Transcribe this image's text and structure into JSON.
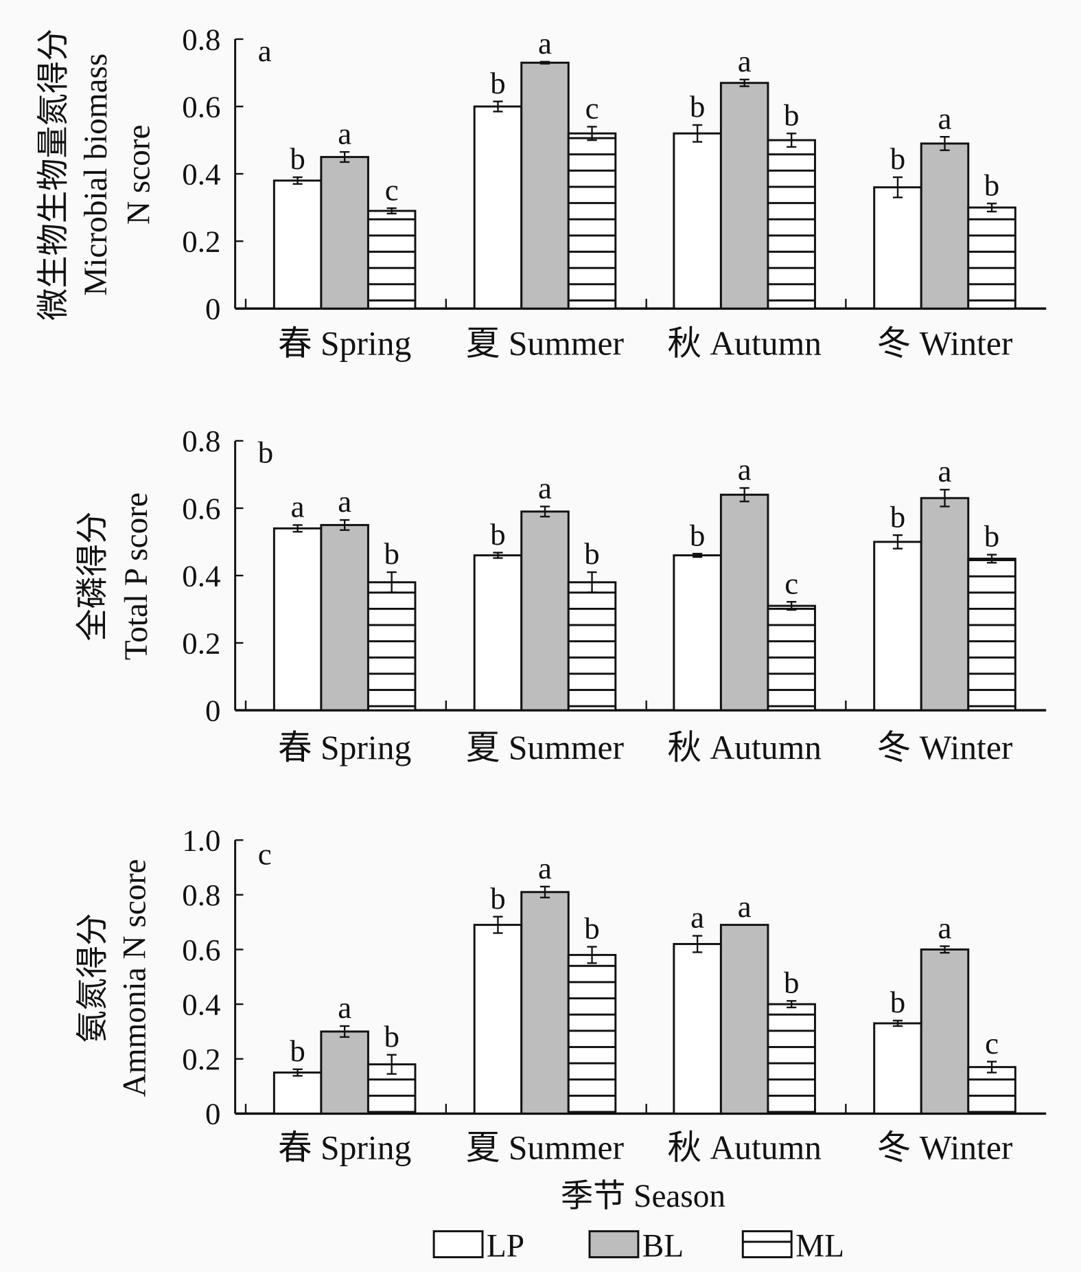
{
  "chart_data": [
    {
      "type": "bar",
      "panel_label": "a",
      "ylabel_lines": [
        "微生物生物量氮得分",
        "Microbial biomass",
        "N score"
      ],
      "ylim": [
        0,
        0.8
      ],
      "yticks": [
        "0",
        "0.2",
        "0.4",
        "0.6",
        "0.8"
      ],
      "categories": [
        "春 Spring",
        "夏 Summer",
        "秋 Autumn",
        "冬 Winter"
      ],
      "series": [
        {
          "name": "LP",
          "values": [
            0.38,
            0.6,
            0.52,
            0.36
          ],
          "errors": [
            0.01,
            0.015,
            0.025,
            0.03
          ],
          "letters": [
            "b",
            "b",
            "b",
            "b"
          ]
        },
        {
          "name": "BL",
          "values": [
            0.45,
            0.73,
            0.67,
            0.49
          ],
          "errors": [
            0.015,
            0.003,
            0.01,
            0.02
          ],
          "letters": [
            "a",
            "a",
            "a",
            "a"
          ]
        },
        {
          "name": "ML",
          "values": [
            0.29,
            0.52,
            0.5,
            0.3
          ],
          "errors": [
            0.008,
            0.02,
            0.02,
            0.012
          ],
          "letters": [
            "c",
            "c",
            "b",
            "b"
          ]
        }
      ]
    },
    {
      "type": "bar",
      "panel_label": "b",
      "ylabel_lines": [
        "全磷得分",
        "Total P score"
      ],
      "ylim": [
        0,
        0.8
      ],
      "yticks": [
        "0",
        "0.2",
        "0.4",
        "0.6",
        "0.8"
      ],
      "categories": [
        "春 Spring",
        "夏 Summer",
        "秋 Autumn",
        "冬 Winter"
      ],
      "series": [
        {
          "name": "LP",
          "values": [
            0.54,
            0.46,
            0.46,
            0.5
          ],
          "errors": [
            0.01,
            0.008,
            0.005,
            0.02
          ],
          "letters": [
            "a",
            "b",
            "b",
            "b"
          ]
        },
        {
          "name": "BL",
          "values": [
            0.55,
            0.59,
            0.64,
            0.63
          ],
          "errors": [
            0.015,
            0.015,
            0.02,
            0.025
          ],
          "letters": [
            "a",
            "a",
            "a",
            "a"
          ]
        },
        {
          "name": "ML",
          "values": [
            0.38,
            0.38,
            0.31,
            0.45
          ],
          "errors": [
            0.03,
            0.03,
            0.012,
            0.012
          ],
          "letters": [
            "b",
            "b",
            "c",
            "b"
          ]
        }
      ]
    },
    {
      "type": "bar",
      "panel_label": "c",
      "ylabel_lines": [
        "氨氮得分",
        "Ammonia N score"
      ],
      "ylim": [
        0,
        1.0
      ],
      "yticks": [
        "0",
        "0.2",
        "0.4",
        "0.6",
        "0.8",
        "1.0"
      ],
      "categories": [
        "春 Spring",
        "夏 Summer",
        "秋 Autumn",
        "冬 Winter"
      ],
      "series": [
        {
          "name": "LP",
          "values": [
            0.15,
            0.69,
            0.62,
            0.33
          ],
          "errors": [
            0.012,
            0.03,
            0.03,
            0.01
          ],
          "letters": [
            "b",
            "b",
            "a",
            "b"
          ]
        },
        {
          "name": "BL",
          "values": [
            0.3,
            0.81,
            0.69,
            0.6
          ],
          "errors": [
            0.02,
            0.02,
            0.0,
            0.012
          ],
          "letters": [
            "a",
            "a",
            "a",
            "a"
          ]
        },
        {
          "name": "ML",
          "values": [
            0.18,
            0.58,
            0.4,
            0.17
          ],
          "errors": [
            0.035,
            0.03,
            0.012,
            0.02
          ],
          "letters": [
            "b",
            "b",
            "b",
            "c"
          ]
        }
      ]
    }
  ],
  "xlabel": "季节 Season",
  "legend": {
    "placement": "bottom",
    "items": [
      "LP",
      "BL",
      "ML"
    ]
  },
  "colors": {
    "LP": "#ffffff",
    "BL": "#bdbdbd",
    "ML": "hatch-horizontal",
    "stroke": "#111111"
  }
}
